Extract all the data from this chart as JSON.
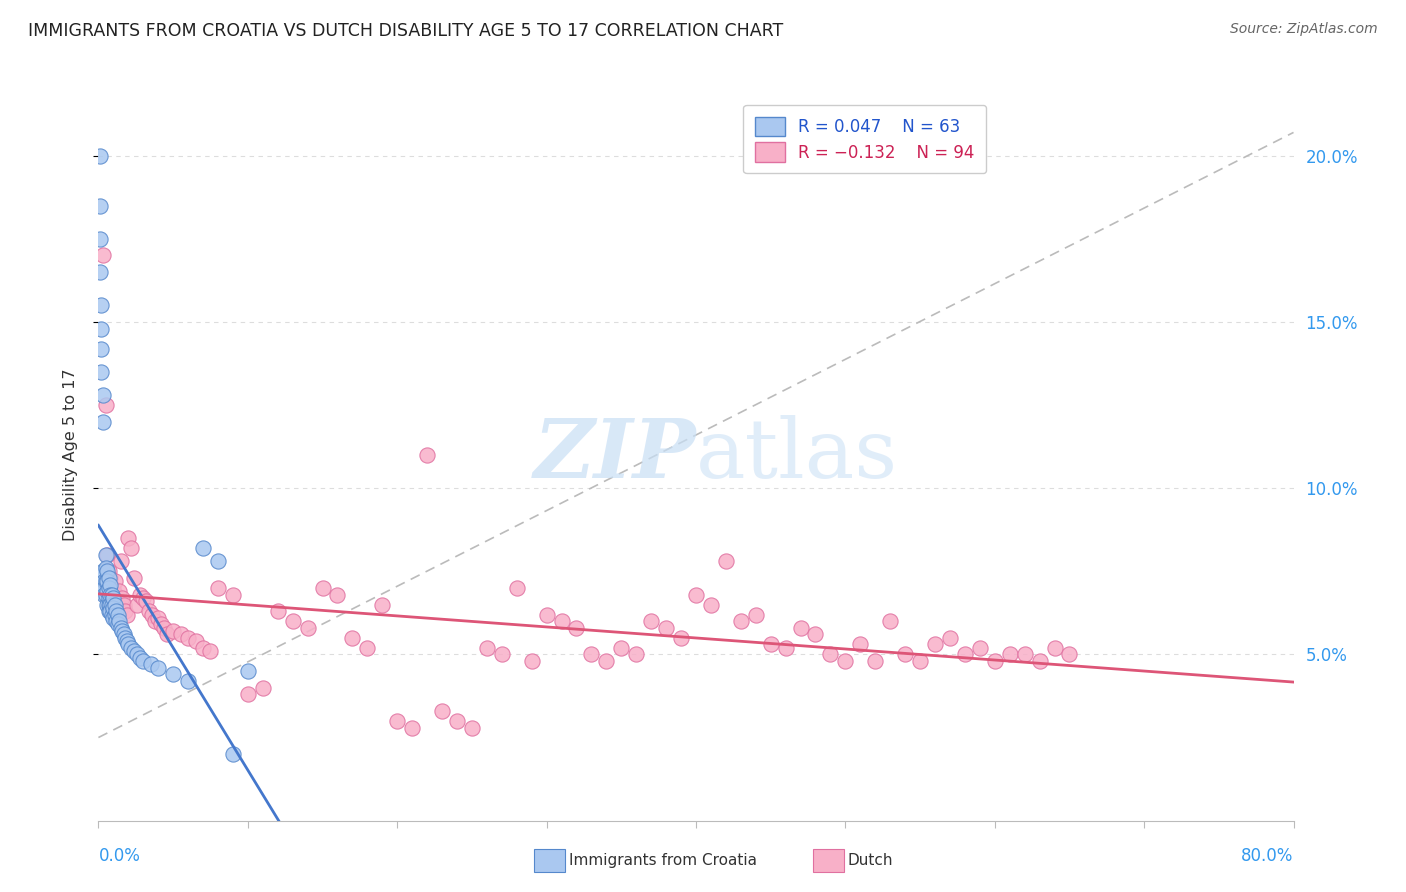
{
  "title": "IMMIGRANTS FROM CROATIA VS DUTCH DISABILITY AGE 5 TO 17 CORRELATION CHART",
  "source": "Source: ZipAtlas.com",
  "ylabel": "Disability Age 5 to 17",
  "ytick_labels": [
    "5.0%",
    "10.0%",
    "15.0%",
    "20.0%"
  ],
  "ytick_values": [
    0.05,
    0.1,
    0.15,
    0.2
  ],
  "xlim": [
    0.0,
    0.8
  ],
  "ylim": [
    0.0,
    0.22
  ],
  "croatia_color": "#aac8f0",
  "croatia_edge_color": "#5588cc",
  "dutch_color": "#f8b0c8",
  "dutch_edge_color": "#e070a0",
  "trendline_croatia_color": "#4477cc",
  "trendline_dutch_color": "#dd5577",
  "dashed_line_color": "#bbbbbb",
  "watermark_color": "#c8dff5",
  "grid_color": "#dddddd",
  "croatia_points_x": [
    0.001,
    0.001,
    0.001,
    0.001,
    0.002,
    0.002,
    0.002,
    0.002,
    0.003,
    0.003,
    0.003,
    0.004,
    0.004,
    0.004,
    0.005,
    0.005,
    0.005,
    0.005,
    0.006,
    0.006,
    0.006,
    0.006,
    0.007,
    0.007,
    0.007,
    0.007,
    0.007,
    0.008,
    0.008,
    0.008,
    0.008,
    0.009,
    0.009,
    0.009,
    0.01,
    0.01,
    0.01,
    0.011,
    0.011,
    0.012,
    0.012,
    0.013,
    0.013,
    0.014,
    0.015,
    0.016,
    0.017,
    0.018,
    0.019,
    0.02,
    0.022,
    0.024,
    0.026,
    0.028,
    0.03,
    0.035,
    0.04,
    0.05,
    0.06,
    0.07,
    0.08,
    0.09,
    0.1
  ],
  "croatia_points_y": [
    0.2,
    0.185,
    0.175,
    0.165,
    0.155,
    0.148,
    0.142,
    0.135,
    0.128,
    0.12,
    0.075,
    0.072,
    0.07,
    0.068,
    0.08,
    0.076,
    0.072,
    0.068,
    0.075,
    0.072,
    0.069,
    0.065,
    0.073,
    0.07,
    0.067,
    0.065,
    0.063,
    0.071,
    0.068,
    0.065,
    0.063,
    0.068,
    0.065,
    0.062,
    0.067,
    0.064,
    0.061,
    0.065,
    0.062,
    0.063,
    0.06,
    0.062,
    0.059,
    0.06,
    0.058,
    0.057,
    0.056,
    0.055,
    0.054,
    0.053,
    0.052,
    0.051,
    0.05,
    0.049,
    0.048,
    0.047,
    0.046,
    0.044,
    0.042,
    0.082,
    0.078,
    0.02,
    0.045
  ],
  "dutch_points_x": [
    0.003,
    0.005,
    0.006,
    0.007,
    0.008,
    0.009,
    0.01,
    0.011,
    0.012,
    0.013,
    0.014,
    0.015,
    0.016,
    0.017,
    0.018,
    0.019,
    0.02,
    0.022,
    0.024,
    0.026,
    0.028,
    0.03,
    0.032,
    0.034,
    0.036,
    0.038,
    0.04,
    0.042,
    0.044,
    0.046,
    0.05,
    0.055,
    0.06,
    0.065,
    0.07,
    0.075,
    0.08,
    0.09,
    0.1,
    0.11,
    0.12,
    0.13,
    0.14,
    0.15,
    0.16,
    0.17,
    0.18,
    0.19,
    0.2,
    0.21,
    0.22,
    0.23,
    0.24,
    0.25,
    0.26,
    0.27,
    0.28,
    0.29,
    0.3,
    0.31,
    0.32,
    0.33,
    0.34,
    0.35,
    0.36,
    0.37,
    0.38,
    0.39,
    0.4,
    0.41,
    0.42,
    0.43,
    0.44,
    0.45,
    0.46,
    0.47,
    0.48,
    0.49,
    0.5,
    0.51,
    0.52,
    0.53,
    0.54,
    0.55,
    0.56,
    0.57,
    0.58,
    0.59,
    0.6,
    0.61,
    0.62,
    0.63,
    0.64,
    0.65
  ],
  "dutch_points_y": [
    0.17,
    0.125,
    0.08,
    0.075,
    0.073,
    0.068,
    0.07,
    0.072,
    0.068,
    0.065,
    0.069,
    0.078,
    0.067,
    0.065,
    0.063,
    0.062,
    0.085,
    0.082,
    0.073,
    0.065,
    0.068,
    0.067,
    0.066,
    0.063,
    0.062,
    0.06,
    0.061,
    0.059,
    0.058,
    0.056,
    0.057,
    0.056,
    0.055,
    0.054,
    0.052,
    0.051,
    0.07,
    0.068,
    0.038,
    0.04,
    0.063,
    0.06,
    0.058,
    0.07,
    0.068,
    0.055,
    0.052,
    0.065,
    0.03,
    0.028,
    0.11,
    0.033,
    0.03,
    0.028,
    0.052,
    0.05,
    0.07,
    0.048,
    0.062,
    0.06,
    0.058,
    0.05,
    0.048,
    0.052,
    0.05,
    0.06,
    0.058,
    0.055,
    0.068,
    0.065,
    0.078,
    0.06,
    0.062,
    0.053,
    0.052,
    0.058,
    0.056,
    0.05,
    0.048,
    0.053,
    0.048,
    0.06,
    0.05,
    0.048,
    0.053,
    0.055,
    0.05,
    0.052,
    0.048,
    0.05,
    0.05,
    0.048,
    0.052,
    0.05
  ]
}
